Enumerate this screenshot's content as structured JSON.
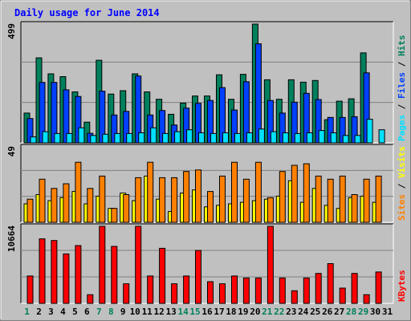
{
  "chart_data": {
    "type": "bar",
    "title": "Daily usage for June 2014",
    "categories": [
      "1",
      "2",
      "3",
      "4",
      "5",
      "6",
      "7",
      "8",
      "9",
      "10",
      "11",
      "12",
      "13",
      "14",
      "15",
      "16",
      "17",
      "18",
      "19",
      "20",
      "21",
      "22",
      "23",
      "24",
      "25",
      "26",
      "27",
      "28",
      "29",
      "30",
      "31"
    ],
    "weekend_days": [
      1,
      7,
      8,
      14,
      15,
      21,
      22,
      28,
      29
    ],
    "colors": {
      "title": "#0000ff",
      "hits": "#00805c",
      "files": "#0040ff",
      "pages": "#00e0ff",
      "visits": "#ffff00",
      "sites": "#ff8000",
      "kbytes": "#ff0000",
      "weekday_label": "#000000",
      "weekend_label": "#00805c"
    },
    "panels": [
      {
        "id": "top",
        "max_label": "499",
        "ymax": 499,
        "legend": [
          {
            "text": "Pages",
            "color": "#00e0ff"
          },
          {
            "text": " / ",
            "color": "#000000"
          },
          {
            "text": "Files",
            "color": "#0040ff"
          },
          {
            "text": " / ",
            "color": "#000000"
          },
          {
            "text": "Hits",
            "color": "#00805c"
          }
        ],
        "series": [
          {
            "name": "Hits",
            "color": "#00805c",
            "offset": 0,
            "values": [
              125,
              357,
              290,
              278,
              214,
              87,
              347,
              205,
              219,
              290,
              214,
              183,
              120,
              167,
              197,
              197,
              286,
              183,
              288,
              499,
              265,
              183,
              265,
              255,
              262,
              97,
              175,
              185,
              378,
              0,
              0
            ]
          },
          {
            "name": "Files",
            "color": "#0040ff",
            "offset": 8,
            "values": [
              102,
              254,
              254,
              223,
              195,
              40,
              217,
              117,
              132,
              281,
              117,
              136,
              75,
              146,
              166,
              178,
              232,
              138,
              257,
              416,
              178,
              125,
              171,
              208,
              182,
              107,
              107,
              110,
              294,
              0,
              0
            ]
          },
          {
            "name": "Pages",
            "color": "#00e0ff",
            "offset": 16,
            "values": [
              25,
              47,
              39,
              39,
              63,
              31,
              36,
              39,
              39,
              42,
              63,
              39,
              47,
              55,
              42,
              39,
              42,
              39,
              42,
              58,
              47,
              42,
              39,
              42,
              52,
              42,
              31,
              31,
              99,
              55,
              0
            ]
          }
        ]
      },
      {
        "id": "middle",
        "max_label": "49",
        "ymax": 49,
        "legend": [
          {
            "text": "Sites",
            "color": "#ff8000"
          },
          {
            "text": " / ",
            "color": "#000000"
          },
          {
            "text": "Visits",
            "color": "#ffff00"
          }
        ],
        "series": [
          {
            "name": "Visits",
            "color": "#ffff00",
            "offset": 0,
            "values": [
              12,
              18,
              14,
              16,
              20,
              12,
              17,
              9,
              19,
              14,
              30,
              15,
              7,
              19,
              21,
              10,
              11,
              12,
              13,
              14,
              15,
              17,
              27,
              13,
              22,
              11,
              9,
              16,
              17,
              13,
              0
            ]
          },
          {
            "name": "Sites",
            "color": "#ff8000",
            "offset": 8,
            "values": [
              15,
              28,
              22,
              25,
              39,
              22,
              30,
              9,
              18,
              29,
              39,
              29,
              29,
              33,
              34,
              20,
              30,
              39,
              28,
              39,
              16,
              33,
              37,
              38,
              30,
              28,
              30,
              18,
              28,
              30,
              0
            ]
          }
        ]
      },
      {
        "id": "bottom",
        "max_label": "10664",
        "ymax": 10664,
        "legend": [
          {
            "text": "KBytes",
            "color": "#ff0000"
          }
        ],
        "series": [
          {
            "name": "KBytes",
            "color": "#ff0000",
            "offset": 8,
            "values": [
              3785,
              8928,
              8696,
              6839,
              7999,
              1199,
              10664,
              7883,
              2712,
              10664,
              3785,
              7625,
              2712,
              3785,
              7315,
              2996,
              2712,
              3785,
              3507,
              3507,
              10664,
              3507,
              1741,
              3507,
              4146,
              5500,
              2116,
              4146,
              1199,
              4346,
              0
            ]
          }
        ]
      }
    ]
  }
}
